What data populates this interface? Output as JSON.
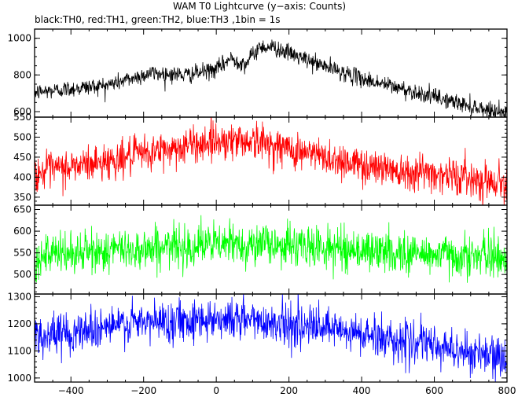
{
  "title": "WAM T0 Lightcurve (y−axis: Counts)",
  "subtitle": "black:TH0, red:TH1, green:TH2, blue:TH3 ,1bin = 1s",
  "chart_data": {
    "type": "line",
    "title": "WAM T0 Lightcurve (y−axis: Counts)",
    "subtitle": "black:TH0, red:TH1, green:TH2, blue:TH3 ,1bin = 1s",
    "xlim": [
      -500,
      800
    ],
    "x_ticks": [
      -400,
      -200,
      0,
      200,
      400,
      600,
      800
    ],
    "x_tick_labels": [
      "−400",
      "−200",
      "0",
      "200",
      "400",
      "600",
      "800"
    ],
    "x_minor_step": 50,
    "bin_seconds": 1,
    "panels": [
      {
        "series_name": "TH0",
        "color": "#000000",
        "ylim": [
          570,
          1050
        ],
        "y_ticks": [
          600,
          800,
          1000
        ],
        "y_minor_step": 50,
        "noise_sd": 23,
        "trend": [
          [
            -500,
            705
          ],
          [
            -300,
            745
          ],
          [
            -180,
            810
          ],
          [
            -80,
            800
          ],
          [
            0,
            830
          ],
          [
            40,
            890
          ],
          [
            80,
            860
          ],
          [
            120,
            955
          ],
          [
            160,
            950
          ],
          [
            250,
            880
          ],
          [
            400,
            780
          ],
          [
            600,
            680
          ],
          [
            700,
            630
          ],
          [
            800,
            590
          ]
        ]
      },
      {
        "series_name": "TH1",
        "color": "#ff0000",
        "ylim": [
          330,
          550
        ],
        "y_ticks": [
          350,
          400,
          450,
          500,
          550
        ],
        "y_minor_step": 10,
        "noise_sd": 23,
        "trend": [
          [
            -500,
            410
          ],
          [
            -300,
            440
          ],
          [
            -100,
            475
          ],
          [
            0,
            492
          ],
          [
            100,
            492
          ],
          [
            200,
            470
          ],
          [
            400,
            430
          ],
          [
            600,
            410
          ],
          [
            800,
            385
          ]
        ]
      },
      {
        "series_name": "TH2",
        "color": "#00ff00",
        "ylim": [
          455,
          660
        ],
        "y_ticks": [
          500,
          550,
          600,
          650
        ],
        "y_minor_step": 10,
        "noise_sd": 24,
        "trend": [
          [
            -500,
            540
          ],
          [
            -300,
            555
          ],
          [
            -100,
            565
          ],
          [
            0,
            570
          ],
          [
            150,
            570
          ],
          [
            300,
            562
          ],
          [
            500,
            550
          ],
          [
            800,
            540
          ]
        ]
      },
      {
        "series_name": "TH3",
        "color": "#0000ff",
        "ylim": [
          985,
          1310
        ],
        "y_ticks": [
          1000,
          1100,
          1200,
          1300
        ],
        "y_minor_step": 20,
        "noise_sd": 38,
        "trend": [
          [
            -500,
            1150
          ],
          [
            -300,
            1190
          ],
          [
            -100,
            1215
          ],
          [
            0,
            1220
          ],
          [
            100,
            1215
          ],
          [
            300,
            1180
          ],
          [
            500,
            1140
          ],
          [
            700,
            1095
          ],
          [
            800,
            1060
          ]
        ]
      }
    ]
  }
}
